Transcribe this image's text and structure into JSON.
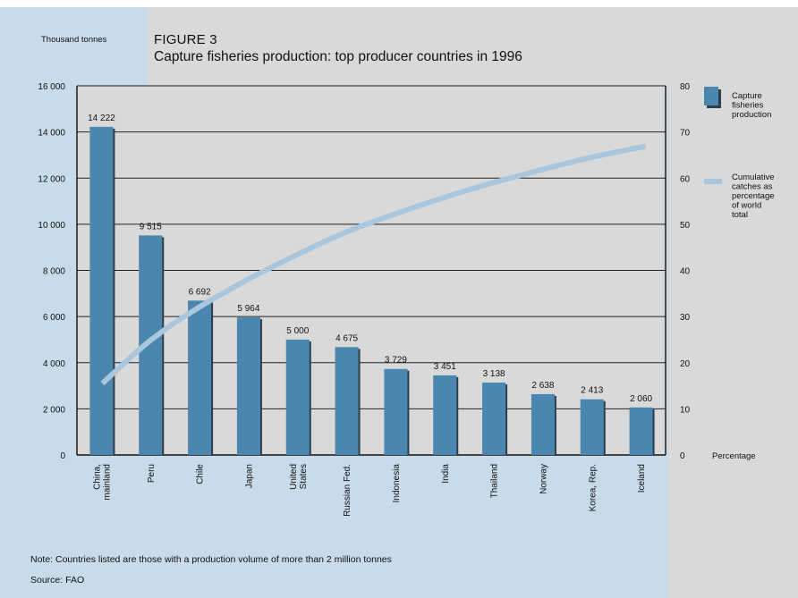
{
  "figure_label": "FIGURE 3",
  "title": "Capture fisheries production: top producer countries in 1996",
  "y_left_unit": "Thousand tonnes",
  "y_right_unit": "Percentage",
  "note": "Note: Countries listed are those with a production volume of more than 2 million tonnes",
  "source": "Source: FAO",
  "legend": {
    "bar_label_lines": [
      "Capture",
      "fisheries",
      "production"
    ],
    "line_label_lines": [
      "Cumulative",
      "catches as",
      "percentage",
      "of world",
      "total"
    ]
  },
  "colors": {
    "bar": "#4a86ad",
    "bar_shadow": "#2d3e4a",
    "line": "#a9c6dc",
    "panel": "#c7dbe9",
    "plot_background": "#d9d9d9"
  },
  "chart_data": {
    "type": "bar",
    "categories": [
      [
        "China,",
        "mainland"
      ],
      [
        "Peru"
      ],
      [
        "Chile"
      ],
      [
        "Japan"
      ],
      [
        "United",
        "States"
      ],
      [
        "Russian Fed."
      ],
      [
        "Indonesia"
      ],
      [
        "India"
      ],
      [
        "Thailand"
      ],
      [
        "Norway"
      ],
      [
        "Korea, Rep."
      ],
      [
        "Iceland"
      ]
    ],
    "series": [
      {
        "name": "Capture fisheries production",
        "axis": "left",
        "values": [
          14222,
          9515,
          6692,
          5964,
          5000,
          4675,
          3729,
          3451,
          3138,
          2638,
          2413,
          2060
        ],
        "labels": [
          "14 222",
          "9 515",
          "6 692",
          "5 964",
          "5 000",
          "4 675",
          "3 729",
          "3 451",
          "3 138",
          "2 638",
          "2 413",
          "2 060"
        ]
      },
      {
        "name": "Cumulative catches as percentage of world total",
        "axis": "right",
        "type": "line",
        "values": [
          15.5,
          25.2,
          32.2,
          38.2,
          43.5,
          48.5,
          52.3,
          55.9,
          59.1,
          61.9,
          64.6,
          66.9
        ]
      }
    ],
    "y_left": {
      "ylim": [
        0,
        16000
      ],
      "ticks": [
        0,
        2000,
        4000,
        6000,
        8000,
        10000,
        12000,
        14000,
        16000
      ],
      "tick_labels": [
        "0",
        "2 000",
        "4 000",
        "6 000",
        "8 000",
        "10 000",
        "12 000",
        "14 000",
        "16 000"
      ]
    },
    "y_right": {
      "ylim": [
        0,
        80
      ],
      "ticks": [
        0,
        10,
        20,
        30,
        40,
        50,
        60,
        70,
        80
      ],
      "tick_labels": [
        "0",
        "10",
        "20",
        "30",
        "40",
        "50",
        "60",
        "70",
        "80"
      ]
    },
    "grid": true,
    "legend_position": "right"
  }
}
